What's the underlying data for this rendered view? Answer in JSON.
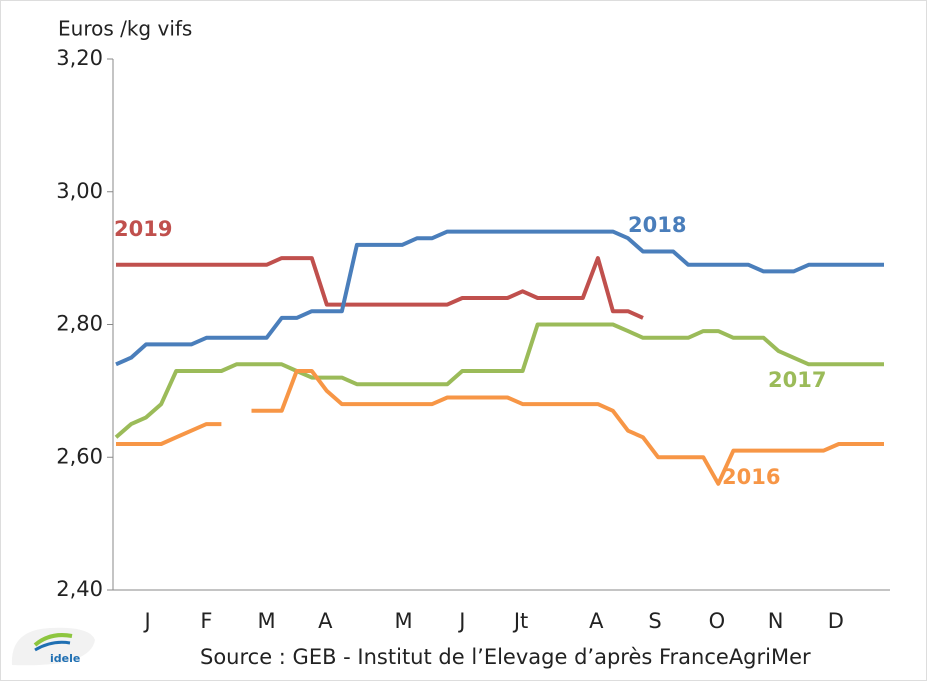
{
  "chart_data": {
    "type": "line",
    "y_label": "Euros /kg vifs",
    "source": "Source : GEB - Institut de l’Elevage d’après FranceAgriMer",
    "logo": "idele",
    "xlim": [
      0.8,
      52.4
    ],
    "xticks": [
      {
        "value": 3.1,
        "label": "J"
      },
      {
        "value": 7.0,
        "label": "F"
      },
      {
        "value": 11.0,
        "label": "M"
      },
      {
        "value": 14.9,
        "label": "A"
      },
      {
        "value": 20.1,
        "label": "M"
      },
      {
        "value": 24.0,
        "label": "J"
      },
      {
        "value": 27.9,
        "label": "Jt"
      },
      {
        "value": 32.9,
        "label": "A"
      },
      {
        "value": 36.8,
        "label": "S"
      },
      {
        "value": 40.9,
        "label": "O"
      },
      {
        "value": 44.8,
        "label": "N"
      },
      {
        "value": 48.8,
        "label": "D"
      }
    ],
    "ylim": [
      2.4,
      3.2
    ],
    "yticks": [
      {
        "value": 2.4,
        "label": "2,40"
      },
      {
        "value": 2.6,
        "label": "2,60"
      },
      {
        "value": 2.8,
        "label": "2,80"
      },
      {
        "value": 3.0,
        "label": "3,00"
      },
      {
        "value": 3.2,
        "label": "3,20"
      }
    ],
    "x": [
      1,
      2,
      3,
      4,
      5,
      6,
      7,
      8,
      9,
      10,
      11,
      12,
      13,
      14,
      15,
      16,
      17,
      18,
      19,
      20,
      21,
      22,
      23,
      24,
      25,
      26,
      27,
      28,
      29,
      30,
      31,
      32,
      33,
      34,
      35,
      36,
      37,
      38,
      39,
      40,
      41,
      42,
      43,
      44,
      45,
      46,
      47,
      48,
      49,
      50,
      51,
      52
    ],
    "series": [
      {
        "name": "2019",
        "color": "#c0504d",
        "values": [
          2.89,
          2.89,
          2.89,
          2.89,
          2.89,
          2.89,
          2.89,
          2.89,
          2.89,
          2.89,
          2.89,
          2.9,
          2.9,
          2.9,
          2.83,
          2.83,
          2.83,
          2.83,
          2.83,
          2.83,
          2.83,
          2.83,
          2.83,
          2.84,
          2.84,
          2.84,
          2.84,
          2.85,
          2.84,
          2.84,
          2.84,
          2.84,
          2.9,
          2.82,
          2.82,
          2.81,
          null,
          null,
          null,
          null,
          null,
          null,
          null,
          null,
          null,
          null,
          null,
          null,
          null,
          null,
          null,
          null
        ]
      },
      {
        "name": "2018",
        "color": "#4a7ebb",
        "values": [
          2.74,
          2.75,
          2.77,
          2.77,
          2.77,
          2.77,
          2.78,
          2.78,
          2.78,
          2.78,
          2.78,
          2.81,
          2.81,
          2.82,
          2.82,
          2.82,
          2.92,
          2.92,
          2.92,
          2.92,
          2.93,
          2.93,
          2.94,
          2.94,
          2.94,
          2.94,
          2.94,
          2.94,
          2.94,
          2.94,
          2.94,
          2.94,
          2.94,
          2.94,
          2.93,
          2.91,
          2.91,
          2.91,
          2.89,
          2.89,
          2.89,
          2.89,
          2.89,
          2.88,
          2.88,
          2.88,
          2.89,
          2.89,
          2.89,
          2.89,
          2.89,
          2.89
        ]
      },
      {
        "name": "2017",
        "color": "#9bbb59",
        "values": [
          2.63,
          2.65,
          2.66,
          2.68,
          2.73,
          2.73,
          2.73,
          2.73,
          2.74,
          2.74,
          2.74,
          2.74,
          2.73,
          2.72,
          2.72,
          2.72,
          2.71,
          2.71,
          2.71,
          2.71,
          2.71,
          2.71,
          2.71,
          2.73,
          2.73,
          2.73,
          2.73,
          2.73,
          2.8,
          2.8,
          2.8,
          2.8,
          2.8,
          2.8,
          2.79,
          2.78,
          2.78,
          2.78,
          2.78,
          2.79,
          2.79,
          2.78,
          2.78,
          2.78,
          2.76,
          2.75,
          2.74,
          2.74,
          2.74,
          2.74,
          2.74,
          2.74
        ]
      },
      {
        "name": "2016",
        "color": "#f79646",
        "values": [
          2.62,
          2.62,
          2.62,
          2.62,
          2.63,
          2.64,
          2.65,
          2.65,
          null,
          2.67,
          2.67,
          2.67,
          2.73,
          2.73,
          2.7,
          2.68,
          2.68,
          2.68,
          2.68,
          2.68,
          2.68,
          2.68,
          2.69,
          2.69,
          2.69,
          2.69,
          2.69,
          2.68,
          2.68,
          2.68,
          2.68,
          2.68,
          2.68,
          2.67,
          2.64,
          2.63,
          2.6,
          2.6,
          2.6,
          2.6,
          2.56,
          2.61,
          2.61,
          2.61,
          2.61,
          2.61,
          2.61,
          2.61,
          2.62,
          2.62,
          2.62,
          2.62
        ]
      }
    ]
  }
}
